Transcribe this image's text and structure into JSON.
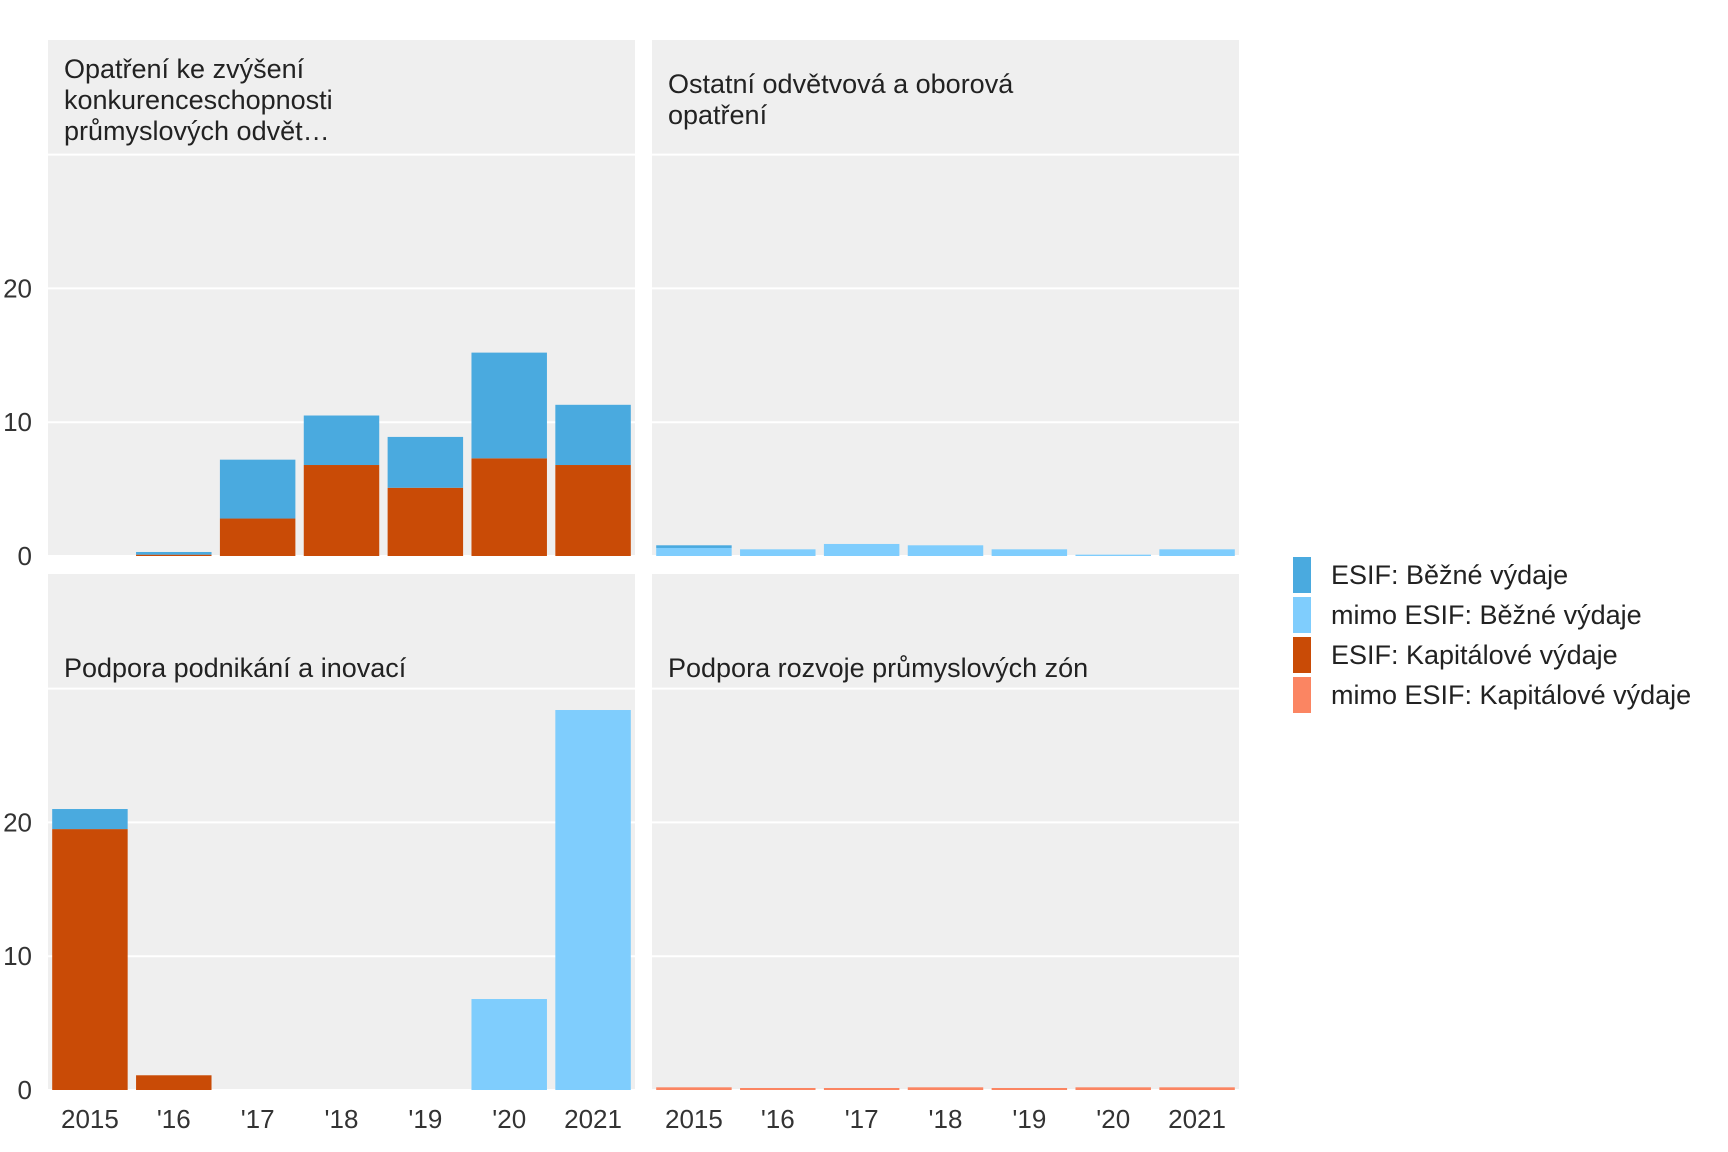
{
  "chart_data": {
    "type": "bar",
    "stacked": true,
    "faceted": true,
    "x": [
      "2015",
      "'16",
      "'17",
      "'18",
      "'19",
      "'20",
      "2021"
    ],
    "y_ticks": [
      "0",
      "10",
      "20"
    ],
    "ylim": [
      0,
      39
    ],
    "grid": true,
    "legend_position": "right",
    "legend": [
      {
        "name": "ESIF: Běžné výdaje",
        "color": "#4aaadf"
      },
      {
        "name": "mimo ESIF: Běžné výdaje",
        "color": "#7fcdfd"
      },
      {
        "name": "ESIF: Kapitálové výdaje",
        "color": "#c94b06"
      },
      {
        "name": "mimo ESIF: Kapitálové výdaje",
        "color": "#fb8562"
      }
    ],
    "facets": [
      {
        "title": "Opatření ke zvýšení\nkonkurenceschopnosti\nprůmyslových odvět…",
        "show_y_axis": true,
        "show_x_axis": false,
        "series": [
          {
            "name": "ESIF: Kapitálové výdaje",
            "values": [
              0,
              0.1,
              2.8,
              6.8,
              5.1,
              7.3,
              6.8
            ]
          },
          {
            "name": "ESIF: Běžné výdaje",
            "values": [
              0,
              0.2,
              4.4,
              3.7,
              3.8,
              7.9,
              4.5
            ]
          }
        ]
      },
      {
        "title": "Ostatní odvětvová a oborová\nopatření",
        "show_y_axis": false,
        "show_x_axis": false,
        "series": [
          {
            "name": "mimo ESIF: Běžné výdaje",
            "values": [
              0.6,
              0.5,
              0.9,
              0.8,
              0.5,
              0.1,
              0.5
            ]
          },
          {
            "name": "ESIF: Běžné výdaje",
            "values": [
              0.2,
              0,
              0,
              0,
              0,
              0,
              0
            ]
          }
        ]
      },
      {
        "title": "Podpora podnikání a inovací",
        "show_y_axis": true,
        "show_x_axis": true,
        "series": [
          {
            "name": "ESIF: Kapitálové výdaje",
            "values": [
              19.5,
              1.1,
              0,
              0,
              0,
              0,
              0
            ]
          },
          {
            "name": "ESIF: Běžné výdaje",
            "values": [
              1.5,
              0,
              0,
              0,
              0,
              0,
              0
            ]
          },
          {
            "name": "mimo ESIF: Běžné výdaje",
            "values": [
              0,
              0,
              0,
              0,
              0,
              6.8,
              28.4
            ]
          }
        ]
      },
      {
        "title": "Podpora rozvoje průmyslových zón",
        "show_y_axis": false,
        "show_x_axis": true,
        "series": [
          {
            "name": "mimo ESIF: Kapitálové výdaje",
            "values": [
              0.2,
              0.15,
              0.15,
              0.2,
              0.15,
              0.2,
              0.2
            ]
          }
        ]
      }
    ]
  }
}
